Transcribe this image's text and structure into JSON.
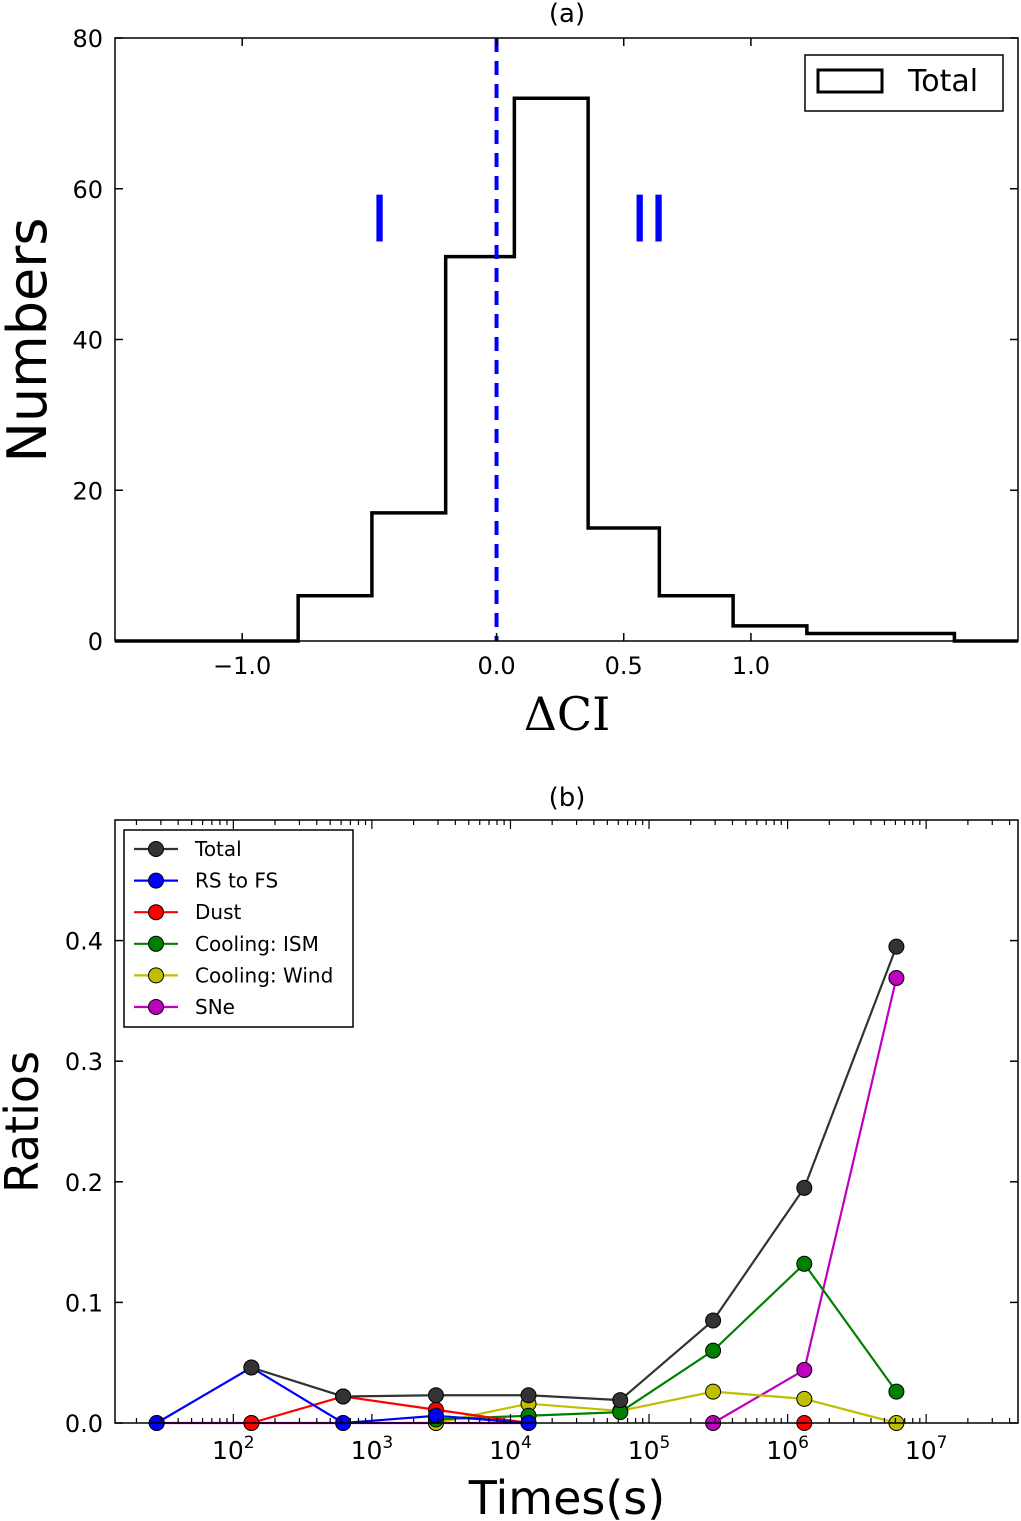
{
  "chart_data": [
    {
      "type": "histogram",
      "title": "(a)",
      "xlabel": "ΔCI",
      "ylabel": "Numbers",
      "xlim": [
        -1.5,
        2.05
      ],
      "ylim": [
        0,
        80
      ],
      "xticks": [
        -1.0,
        0.0,
        0.5,
        1.0
      ],
      "xtick_labels": [
        "−1.0",
        "0.0",
        "0.5",
        "1.0"
      ],
      "yticks": [
        0,
        20,
        40,
        60,
        80
      ],
      "ytick_labels": [
        "0",
        "20",
        "40",
        "60",
        "80"
      ],
      "legend_position": "top-right",
      "series": [
        {
          "name": "Total",
          "color": "#000000",
          "bin_edges": [
            -0.78,
            -0.49,
            -0.2,
            0.07,
            0.36,
            0.64,
            0.93,
            1.22,
            1.8
          ],
          "counts": [
            6,
            17,
            51,
            72,
            15,
            6,
            2,
            1
          ]
        }
      ],
      "vline": {
        "x": 0.0,
        "color": "#0000ff",
        "style": "dashed"
      },
      "annotations": [
        {
          "text": "I",
          "x": -0.46,
          "y": 53,
          "color": "#0000ff"
        },
        {
          "text": "II",
          "x": 0.6,
          "y": 53,
          "color": "#0000ff"
        }
      ]
    },
    {
      "type": "line",
      "title": "(b)",
      "xlabel": "Times(s)",
      "ylabel": "Ratios",
      "xscale": "log",
      "xlim": [
        14,
        46000000
      ],
      "ylim": [
        0,
        0.5
      ],
      "xticks": [
        100,
        1000,
        10000,
        100000,
        1000000,
        10000000
      ],
      "xtick_labels": [
        {
          "base": "10",
          "exp": "2"
        },
        {
          "base": "10",
          "exp": "3"
        },
        {
          "base": "10",
          "exp": "4"
        },
        {
          "base": "10",
          "exp": "5"
        },
        {
          "base": "10",
          "exp": "6"
        },
        {
          "base": "10",
          "exp": "7"
        }
      ],
      "yticks": [
        0.0,
        0.1,
        0.2,
        0.3,
        0.4
      ],
      "ytick_labels": [
        "0.0",
        "0.1",
        "0.2",
        "0.3",
        "0.4"
      ],
      "legend_position": "top-left",
      "x": [
        28,
        135,
        620,
        2900,
        13500,
        62000,
        290000,
        1320000,
        6100000
      ],
      "series": [
        {
          "name": "Total",
          "color": "#333333",
          "values": [
            null,
            0.046,
            0.022,
            0.023,
            0.023,
            0.019,
            0.085,
            0.195,
            0.395
          ]
        },
        {
          "name": "RS to FS",
          "color": "#0000ff",
          "values": [
            0.0,
            0.046,
            0.0,
            0.006,
            0.0,
            null,
            null,
            null,
            null
          ]
        },
        {
          "name": "Dust",
          "color": "#ff0000",
          "values": [
            null,
            0.0,
            0.022,
            0.011,
            0.0,
            null,
            null,
            0.0,
            null
          ]
        },
        {
          "name": "Cooling: ISM",
          "color": "#008000",
          "values": [
            null,
            null,
            null,
            0.003,
            0.006,
            0.009,
            0.06,
            0.132,
            0.026
          ]
        },
        {
          "name": "Cooling: Wind",
          "color": "#bfbf00",
          "values": [
            null,
            null,
            null,
            0.0,
            0.016,
            0.01,
            0.026,
            0.02,
            0.0
          ]
        },
        {
          "name": "SNe",
          "color": "#bf00bf",
          "values": [
            0.0,
            0.0,
            0.0,
            0.0,
            0.0,
            null,
            0.0,
            0.044,
            0.369
          ]
        }
      ]
    }
  ]
}
